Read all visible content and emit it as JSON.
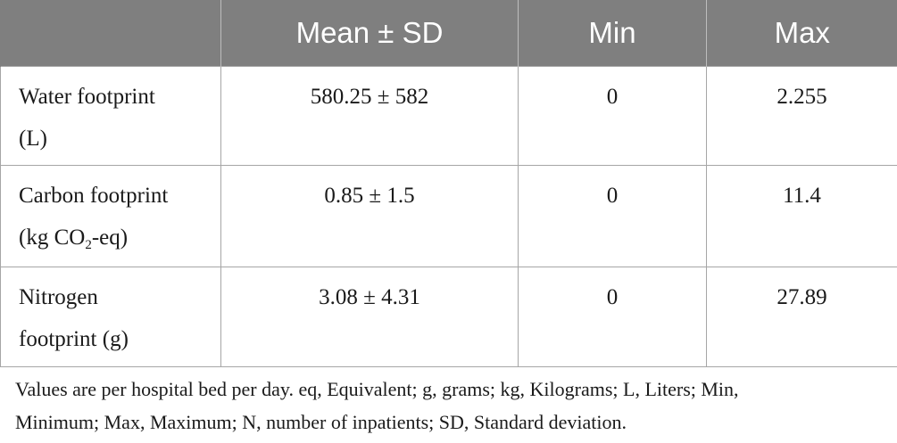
{
  "table": {
    "headers": [
      "",
      "Mean ± SD",
      "Min",
      "Max"
    ],
    "rows": [
      {
        "label_line1": "Water footprint",
        "label_line2": "(L)",
        "mean_sd": "580.25 ± 582",
        "min": "0",
        "max": "2.255"
      },
      {
        "label_line1": "Carbon footprint",
        "label_line2_pre": "(kg CO",
        "label_line2_sub": "2",
        "label_line2_post": "-eq)",
        "mean_sd": "0.85 ± 1.5",
        "min": "0",
        "max": "11.4"
      },
      {
        "label_line1": "Nitrogen",
        "label_line2": "footprint (g)",
        "mean_sd": "3.08 ± 4.31",
        "min": "0",
        "max": "27.89"
      }
    ]
  },
  "footnote": {
    "line1": "Values are per hospital bed per day. eq, Equivalent; g, grams; kg, Kilograms; L, Liters; Min,",
    "line2": "Minimum; Max, Maximum; N, number of inpatients; SD, Standard deviation."
  }
}
